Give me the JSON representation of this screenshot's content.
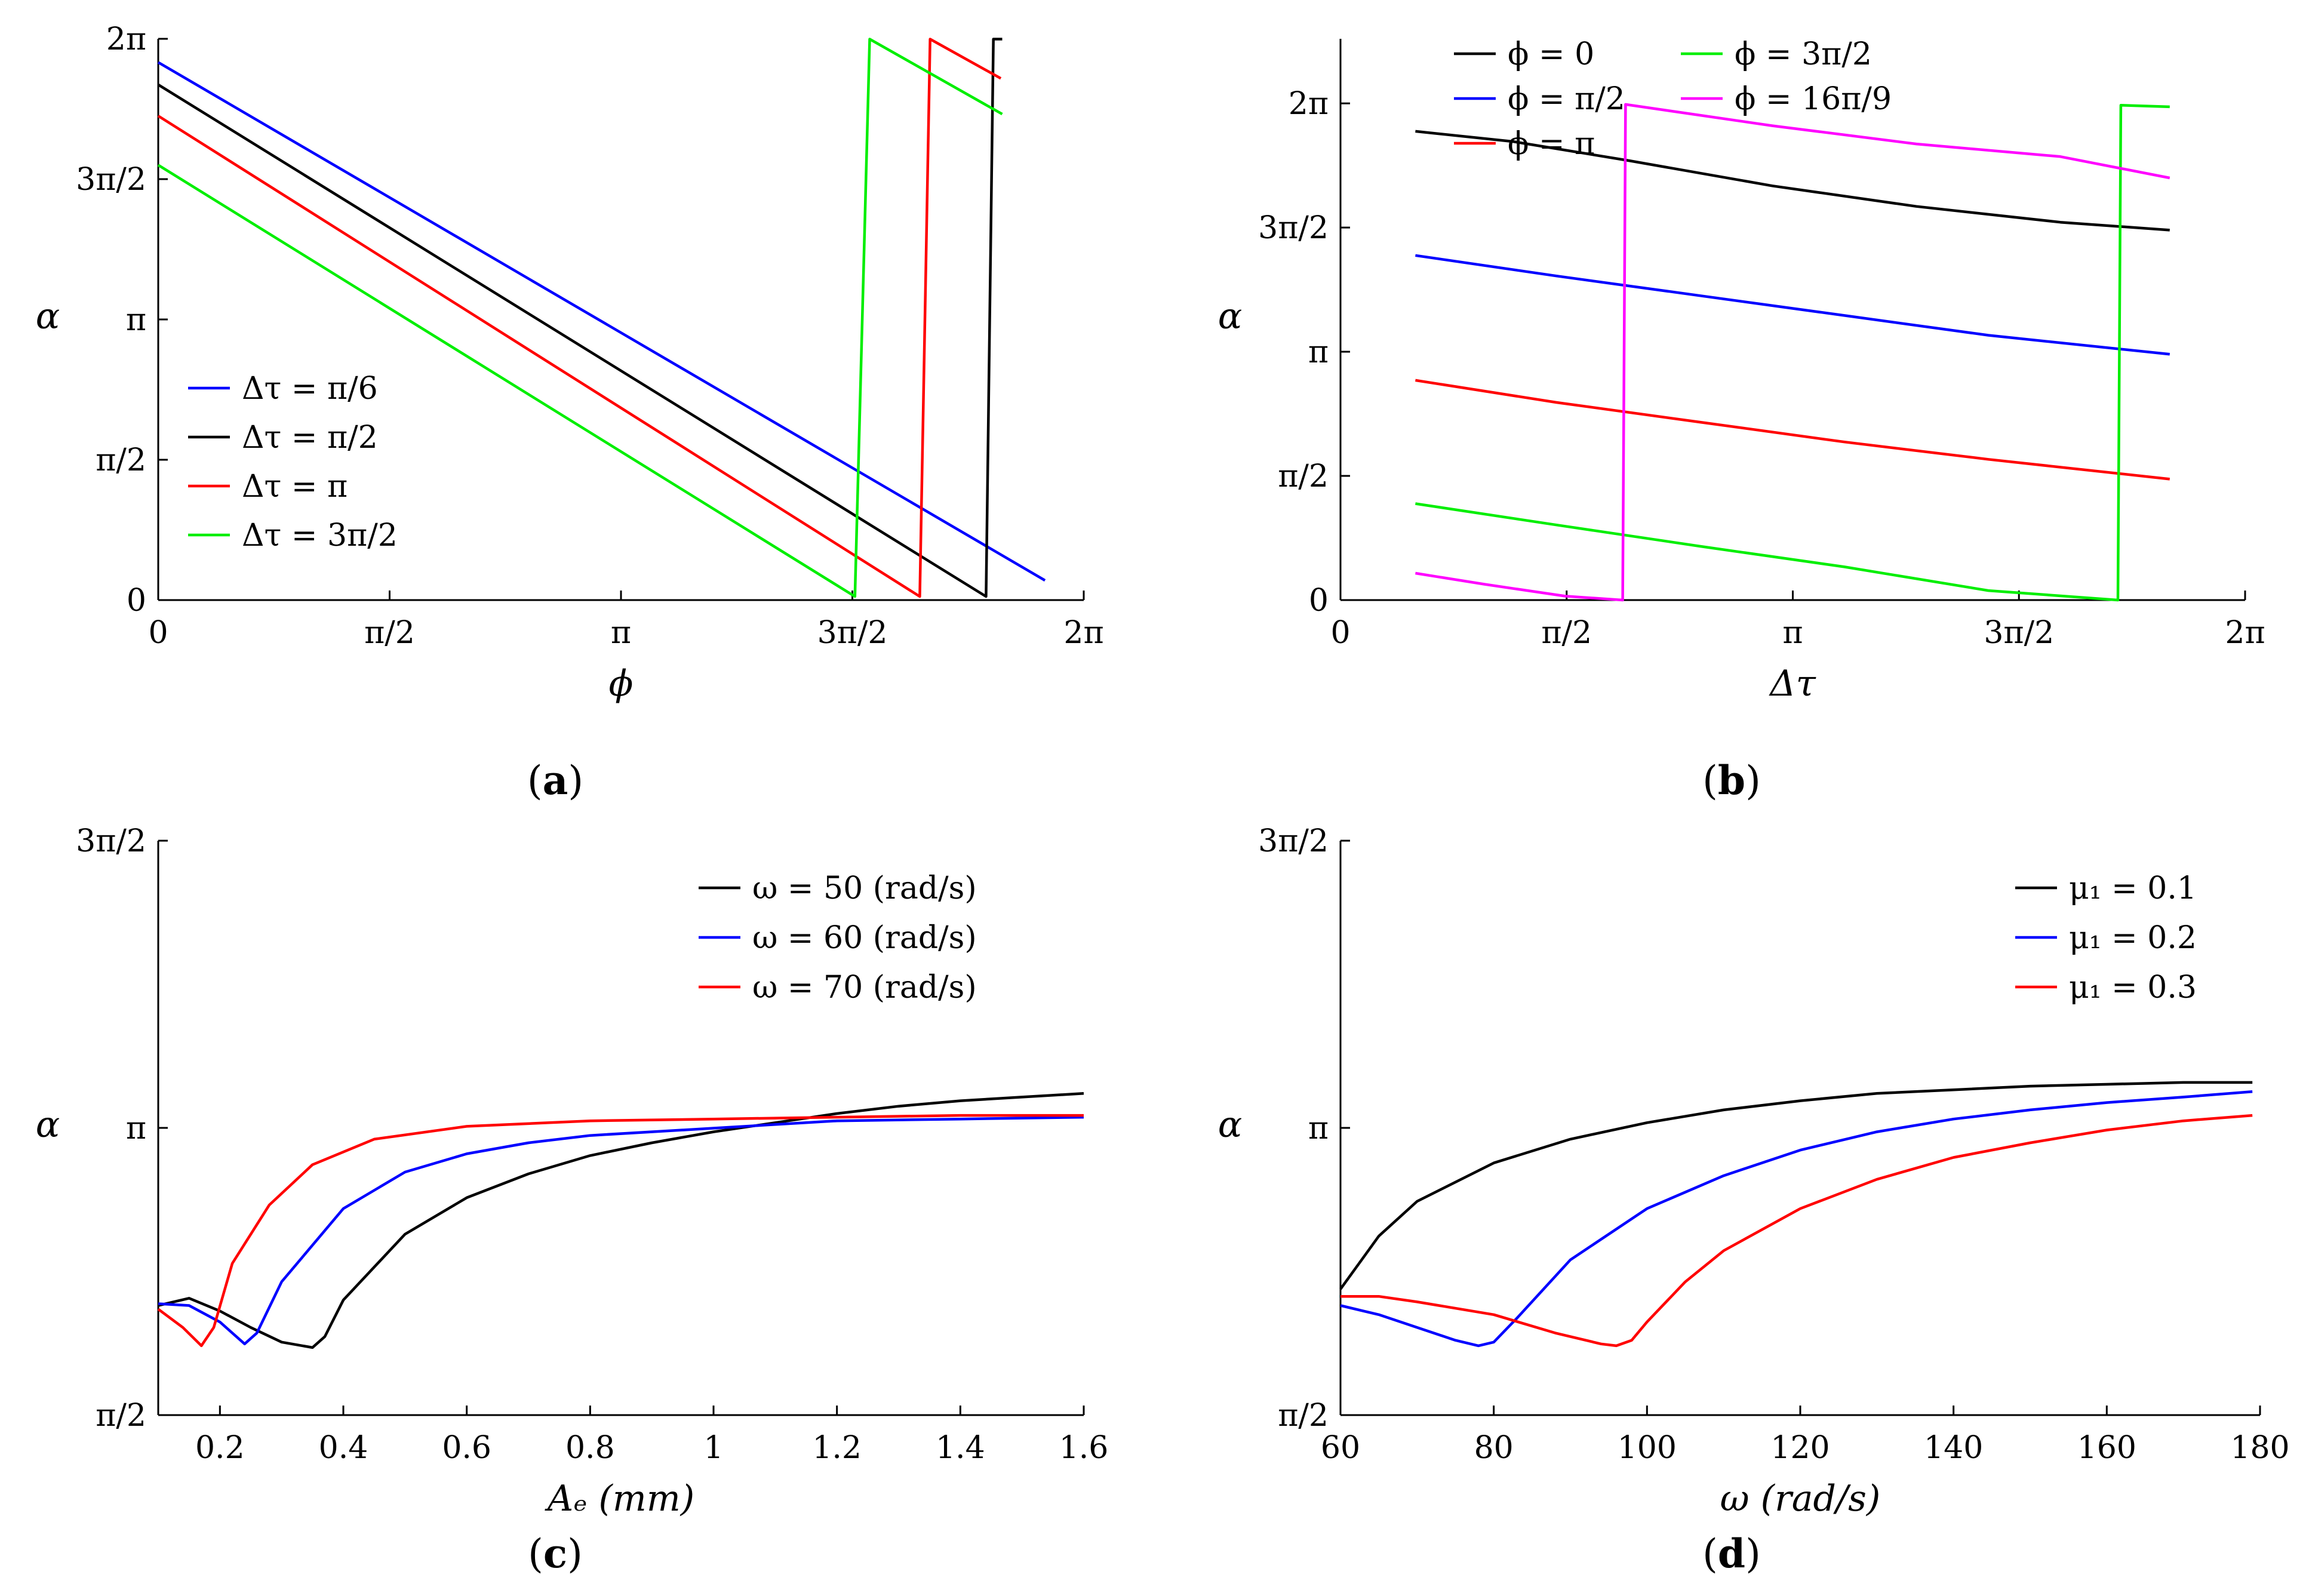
{
  "chart_data": [
    {
      "panel": "a",
      "type": "line",
      "panel_label": "a",
      "xlabel": "ϕ",
      "ylabel": "α",
      "xlim": [
        0,
        6.2832
      ],
      "ylim": [
        0,
        6.2832
      ],
      "xticks": [
        {
          "v": 0,
          "label": "0"
        },
        {
          "v": 1.5708,
          "label": "π/2"
        },
        {
          "v": 3.1416,
          "label": "π"
        },
        {
          "v": 4.7124,
          "label": "3π/2"
        },
        {
          "v": 6.2832,
          "label": "2π"
        }
      ],
      "yticks": [
        {
          "v": 0,
          "label": "0"
        },
        {
          "v": 1.5708,
          "label": "π/2"
        },
        {
          "v": 3.1416,
          "label": "π"
        },
        {
          "v": 4.7124,
          "label": "3π/2"
        },
        {
          "v": 6.2832,
          "label": "2π"
        }
      ],
      "legend_position": "lower-left",
      "series": [
        {
          "name": "Δτ = π/6",
          "color": "#0000ff",
          "points": [
            [
              0,
              6.02
            ],
            [
              6.02,
              0.22
            ]
          ]
        },
        {
          "name": "Δτ = π/2",
          "color": "#000000",
          "points": [
            [
              0,
              5.77
            ],
            [
              5.62,
              0.04
            ],
            [
              5.67,
              6.28
            ],
            [
              5.73,
              6.28
            ]
          ]
        },
        {
          "name": "Δτ = π",
          "color": "#ff0000",
          "points": [
            [
              0,
              5.42
            ],
            [
              5.17,
              0.04
            ],
            [
              5.24,
              6.28
            ],
            [
              5.72,
              5.84
            ]
          ]
        },
        {
          "name": "Δτ = 3π/2",
          "color": "#00ee00",
          "points": [
            [
              0,
              4.87
            ],
            [
              4.73,
              0.04
            ],
            [
              4.83,
              6.28
            ],
            [
              5.73,
              5.44
            ]
          ]
        }
      ]
    },
    {
      "panel": "b",
      "type": "line",
      "panel_label": "b",
      "xlabel": "Δτ",
      "ylabel": "α",
      "xlim": [
        0,
        6.2832
      ],
      "ylim": [
        0,
        7.1
      ],
      "xticks": [
        {
          "v": 0,
          "label": "0"
        },
        {
          "v": 1.5708,
          "label": "π/2"
        },
        {
          "v": 3.1416,
          "label": "π"
        },
        {
          "v": 4.7124,
          "label": "3π/2"
        },
        {
          "v": 6.2832,
          "label": "2π"
        }
      ],
      "yticks": [
        {
          "v": 0,
          "label": "0"
        },
        {
          "v": 1.5708,
          "label": "π/2"
        },
        {
          "v": 3.1416,
          "label": "π"
        },
        {
          "v": 4.7124,
          "label": "3π/2"
        },
        {
          "v": 6.2832,
          "label": "2π"
        }
      ],
      "legend_position": "top-left",
      "series": [
        {
          "name": "ϕ = 0",
          "color": "#000000",
          "points": [
            [
              0.52,
              5.93
            ],
            [
              1.2,
              5.8
            ],
            [
              2.0,
              5.56
            ],
            [
              3.0,
              5.24
            ],
            [
              4.0,
              4.98
            ],
            [
              5.0,
              4.78
            ],
            [
              5.76,
              4.68
            ]
          ]
        },
        {
          "name": "ϕ = π/2",
          "color": "#0000ff",
          "points": [
            [
              0.52,
              4.36
            ],
            [
              1.5,
              4.1
            ],
            [
              2.5,
              3.85
            ],
            [
              3.5,
              3.6
            ],
            [
              4.5,
              3.35
            ],
            [
              5.76,
              3.11
            ]
          ]
        },
        {
          "name": "ϕ = π",
          "color": "#ff0000",
          "points": [
            [
              0.52,
              2.78
            ],
            [
              1.5,
              2.5
            ],
            [
              2.5,
              2.25
            ],
            [
              3.5,
              2.0
            ],
            [
              4.5,
              1.78
            ],
            [
              5.76,
              1.53
            ]
          ]
        },
        {
          "name": "ϕ = 3π/2",
          "color": "#00ee00",
          "points": [
            [
              0.52,
              1.22
            ],
            [
              1.5,
              0.95
            ],
            [
              2.5,
              0.68
            ],
            [
              3.5,
              0.42
            ],
            [
              4.5,
              0.12
            ],
            [
              5.4,
              0.0
            ],
            [
              5.42,
              6.26
            ],
            [
              5.76,
              6.24
            ]
          ]
        },
        {
          "name": "ϕ = 16π/9",
          "color": "#ff00ff",
          "points": [
            [
              0.52,
              0.34
            ],
            [
              1.0,
              0.2
            ],
            [
              1.56,
              0.05
            ],
            [
              1.96,
              0.0
            ],
            [
              1.98,
              6.27
            ],
            [
              3.0,
              6.0
            ],
            [
              4.0,
              5.77
            ],
            [
              5.0,
              5.61
            ],
            [
              5.76,
              5.34
            ]
          ]
        }
      ]
    },
    {
      "panel": "c",
      "type": "line",
      "panel_label": "c",
      "xlabel": "Aₑ (mm)",
      "ylabel": "α",
      "xlim": [
        0.1,
        1.6
      ],
      "ylim": [
        1.5708,
        4.7124
      ],
      "xticks": [
        {
          "v": 0.2,
          "label": "0.2"
        },
        {
          "v": 0.4,
          "label": "0.4"
        },
        {
          "v": 0.6,
          "label": "0.6"
        },
        {
          "v": 0.8,
          "label": "0.8"
        },
        {
          "v": 1.0,
          "label": "1"
        },
        {
          "v": 1.2,
          "label": "1.2"
        },
        {
          "v": 1.4,
          "label": "1.4"
        },
        {
          "v": 1.6,
          "label": "1.6"
        }
      ],
      "yticks": [
        {
          "v": 1.5708,
          "label": "π/2"
        },
        {
          "v": 3.1416,
          "label": "π"
        },
        {
          "v": 4.7124,
          "label": "3π/2"
        }
      ],
      "legend_position": "top-right",
      "series": [
        {
          "name": "ω = 50 (rad/s)",
          "color": "#000000",
          "points": [
            [
              0.1,
              2.17
            ],
            [
              0.15,
              2.21
            ],
            [
              0.2,
              2.14
            ],
            [
              0.25,
              2.05
            ],
            [
              0.3,
              1.97
            ],
            [
              0.35,
              1.94
            ],
            [
              0.37,
              2.0
            ],
            [
              0.4,
              2.2
            ],
            [
              0.5,
              2.56
            ],
            [
              0.6,
              2.76
            ],
            [
              0.7,
              2.89
            ],
            [
              0.8,
              2.99
            ],
            [
              0.9,
              3.06
            ],
            [
              1.0,
              3.12
            ],
            [
              1.1,
              3.17
            ],
            [
              1.2,
              3.22
            ],
            [
              1.3,
              3.26
            ],
            [
              1.4,
              3.29
            ],
            [
              1.5,
              3.31
            ],
            [
              1.6,
              3.33
            ]
          ]
        },
        {
          "name": "ω = 60 (rad/s)",
          "color": "#0000ff",
          "points": [
            [
              0.1,
              2.18
            ],
            [
              0.15,
              2.17
            ],
            [
              0.2,
              2.08
            ],
            [
              0.24,
              1.96
            ],
            [
              0.26,
              2.02
            ],
            [
              0.3,
              2.3
            ],
            [
              0.4,
              2.7
            ],
            [
              0.5,
              2.9
            ],
            [
              0.6,
              3.0
            ],
            [
              0.7,
              3.06
            ],
            [
              0.8,
              3.1
            ],
            [
              1.0,
              3.14
            ],
            [
              1.2,
              3.18
            ],
            [
              1.4,
              3.19
            ],
            [
              1.6,
              3.2
            ]
          ]
        },
        {
          "name": "ω = 70 (rad/s)",
          "color": "#ff0000",
          "points": [
            [
              0.1,
              2.15
            ],
            [
              0.14,
              2.05
            ],
            [
              0.17,
              1.95
            ],
            [
              0.19,
              2.05
            ],
            [
              0.22,
              2.4
            ],
            [
              0.28,
              2.72
            ],
            [
              0.35,
              2.94
            ],
            [
              0.45,
              3.08
            ],
            [
              0.6,
              3.15
            ],
            [
              0.8,
              3.18
            ],
            [
              1.0,
              3.19
            ],
            [
              1.2,
              3.2
            ],
            [
              1.4,
              3.21
            ],
            [
              1.6,
              3.21
            ]
          ]
        }
      ]
    },
    {
      "panel": "d",
      "type": "line",
      "panel_label": "d",
      "xlabel": "ω (rad/s)",
      "ylabel": "α",
      "xlim": [
        60,
        180
      ],
      "ylim": [
        1.5708,
        4.7124
      ],
      "xticks": [
        {
          "v": 60,
          "label": "60"
        },
        {
          "v": 80,
          "label": "80"
        },
        {
          "v": 100,
          "label": "100"
        },
        {
          "v": 120,
          "label": "120"
        },
        {
          "v": 140,
          "label": "140"
        },
        {
          "v": 160,
          "label": "160"
        },
        {
          "v": 180,
          "label": "180"
        }
      ],
      "yticks": [
        {
          "v": 1.5708,
          "label": "π/2"
        },
        {
          "v": 3.1416,
          "label": "π"
        },
        {
          "v": 4.7124,
          "label": "3π/2"
        }
      ],
      "legend_position": "top-right",
      "series": [
        {
          "name": "μ₁ = 0.1",
          "color": "#000000",
          "points": [
            [
              60,
              2.26
            ],
            [
              65,
              2.55
            ],
            [
              70,
              2.74
            ],
            [
              80,
              2.95
            ],
            [
              90,
              3.08
            ],
            [
              100,
              3.17
            ],
            [
              110,
              3.24
            ],
            [
              120,
              3.29
            ],
            [
              130,
              3.33
            ],
            [
              140,
              3.35
            ],
            [
              150,
              3.37
            ],
            [
              160,
              3.38
            ],
            [
              170,
              3.39
            ],
            [
              179,
              3.39
            ]
          ]
        },
        {
          "name": "μ₁ = 0.2",
          "color": "#0000ff",
          "points": [
            [
              60,
              2.17
            ],
            [
              65,
              2.12
            ],
            [
              70,
              2.05
            ],
            [
              75,
              1.98
            ],
            [
              78,
              1.95
            ],
            [
              80,
              1.97
            ],
            [
              83,
              2.1
            ],
            [
              90,
              2.42
            ],
            [
              100,
              2.7
            ],
            [
              110,
              2.88
            ],
            [
              120,
              3.02
            ],
            [
              130,
              3.12
            ],
            [
              140,
              3.19
            ],
            [
              150,
              3.24
            ],
            [
              160,
              3.28
            ],
            [
              170,
              3.31
            ],
            [
              179,
              3.34
            ]
          ]
        },
        {
          "name": "μ₁ = 0.3",
          "color": "#ff0000",
          "points": [
            [
              60,
              2.22
            ],
            [
              65,
              2.22
            ],
            [
              70,
              2.19
            ],
            [
              80,
              2.12
            ],
            [
              88,
              2.02
            ],
            [
              94,
              1.96
            ],
            [
              96,
              1.95
            ],
            [
              98,
              1.98
            ],
            [
              100,
              2.08
            ],
            [
              105,
              2.3
            ],
            [
              110,
              2.47
            ],
            [
              120,
              2.7
            ],
            [
              130,
              2.86
            ],
            [
              140,
              2.98
            ],
            [
              150,
              3.06
            ],
            [
              160,
              3.13
            ],
            [
              170,
              3.18
            ],
            [
              179,
              3.21
            ]
          ]
        }
      ]
    }
  ]
}
